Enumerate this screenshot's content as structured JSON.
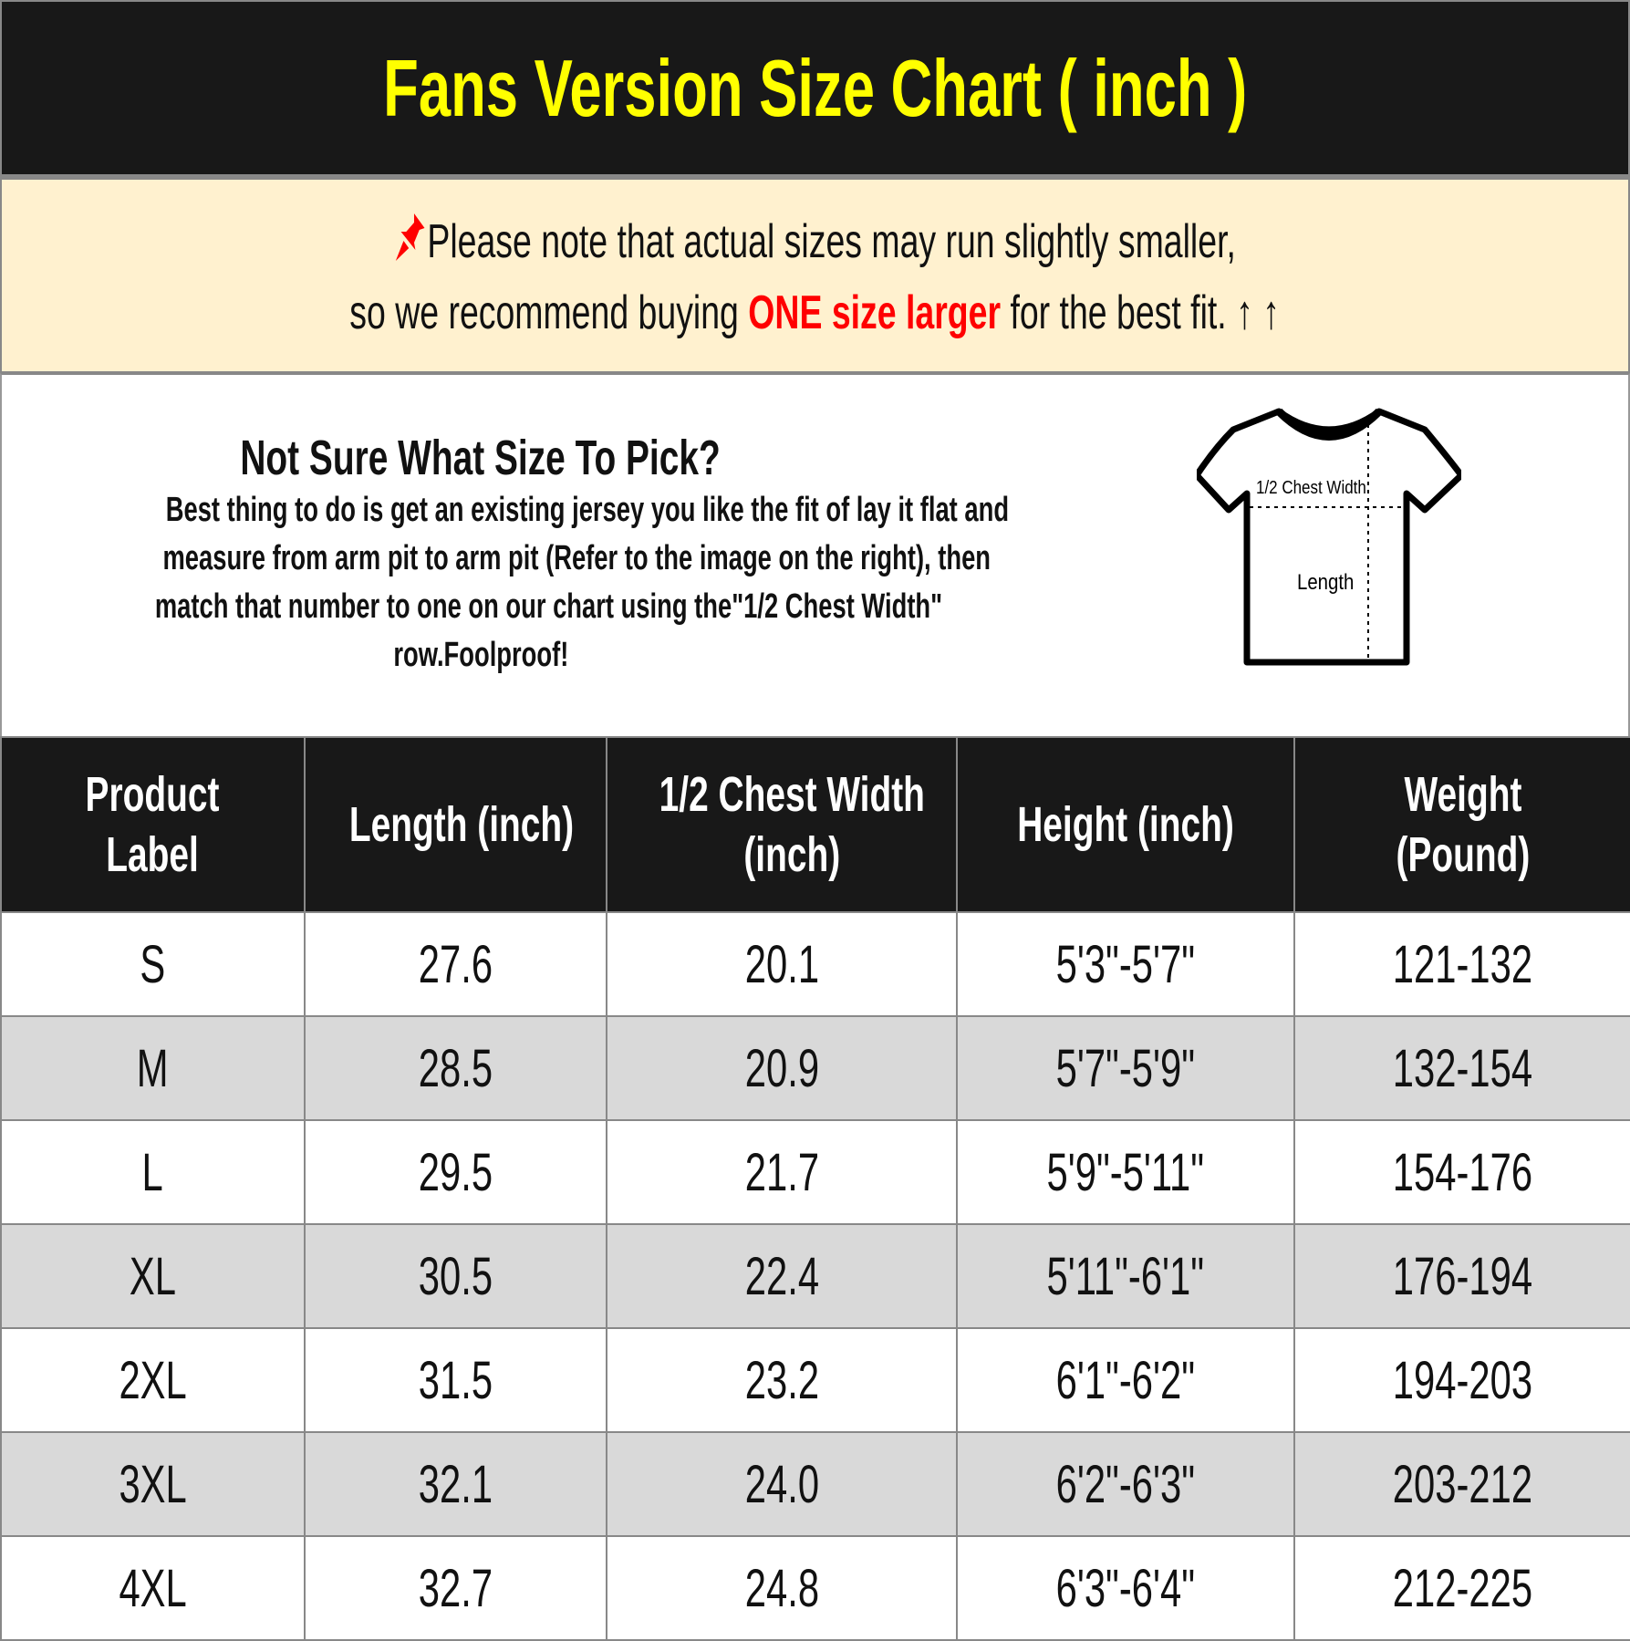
{
  "header": {
    "title": "Fans Version Size Chart ( inch )"
  },
  "note": {
    "icon": "pushpin-icon",
    "line1": "Please note that actual sizes may run slightly smaller,",
    "line2_pre": "so we recommend buying ",
    "line2_highlight": "ONE size larger",
    "line2_post": " for the best fit.",
    "arrows": "↑ ↑",
    "highlight_color": "#ff0000"
  },
  "info": {
    "title": "Not Sure What Size To Pick?",
    "lines": [
      "Best thing to do is get an existing jersey you like the fit of lay it flat and",
      "measure from arm pit to arm pit (Refer to the image on the right), then",
      "match that number to one on our chart using the\"1/2 Chest Width\"",
      "row.Foolproof!"
    ],
    "diagram": {
      "chest_label": "1/2 Chest Width",
      "length_label": "Length"
    }
  },
  "table": {
    "headers": [
      [
        "Product",
        "Label"
      ],
      [
        "Length (inch)"
      ],
      [
        "1/2 Chest Width",
        "(inch)"
      ],
      [
        "Height (inch)"
      ],
      [
        "Weight",
        "(Pound)"
      ]
    ],
    "rows": [
      [
        "S",
        "27.6",
        "20.1",
        "5'3\"-5'7\"",
        "121-132"
      ],
      [
        "M",
        "28.5",
        "20.9",
        "5'7\"-5'9\"",
        "132-154"
      ],
      [
        "L",
        "29.5",
        "21.7",
        "5'9\"-5'11\"",
        "154-176"
      ],
      [
        "XL",
        "30.5",
        "22.4",
        "5'11\"-6'1\"",
        "176-194"
      ],
      [
        "2XL",
        "31.5",
        "23.2",
        "6'1\"-6'2\"",
        "194-203"
      ],
      [
        "3XL",
        "32.1",
        "24.0",
        "6'2\"-6'3\"",
        "203-212"
      ],
      [
        "4XL",
        "32.7",
        "24.8",
        "6'3\"-6'4\"",
        "212-225"
      ]
    ]
  },
  "colors": {
    "title": "#ffff00",
    "header_bg": "#181818",
    "note_bg": "#fff1cf",
    "alt_row": "#d9d9d9"
  }
}
